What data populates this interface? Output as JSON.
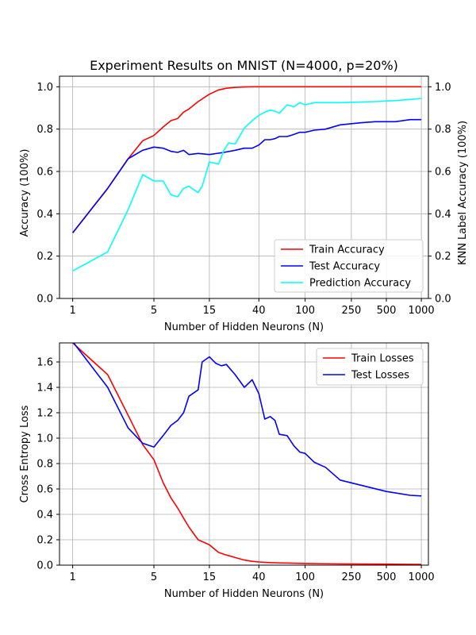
{
  "chart_data": [
    {
      "type": "line",
      "title": "Experiment Results on MNIST (N=4000, p=20%)",
      "xlabel": "Number of Hidden Neurons (N)",
      "ylabel": "Accuracy (100%)",
      "ylabel_right": "KNN Label Accuracy (100%)",
      "x_ticks": [
        1,
        5,
        15,
        40,
        100,
        250,
        500,
        1000
      ],
      "x_tick_labels": [
        "1",
        "5",
        "15",
        "40",
        "100",
        "250",
        "500",
        "1000"
      ],
      "xlim": [
        0.77,
        1150
      ],
      "ylim": [
        0,
        1.05
      ],
      "y_ticks": [
        0.0,
        0.2,
        0.4,
        0.6,
        0.8,
        1.0
      ],
      "y_tick_labels": [
        "0.0",
        "0.2",
        "0.4",
        "0.6",
        "0.8",
        "1.0"
      ],
      "grid": true,
      "legend_position": "lower-right",
      "series": [
        {
          "name": "Train Accuracy",
          "color": "#ff0000",
          "x": [
            1,
            2,
            3,
            4,
            5,
            6,
            7,
            8,
            9,
            10,
            12,
            15,
            18,
            21,
            25,
            30,
            35,
            40,
            50,
            60,
            80,
            100,
            150,
            200,
            300,
            500,
            1000
          ],
          "y": [
            0.31,
            0.52,
            0.66,
            0.745,
            0.77,
            0.81,
            0.84,
            0.85,
            0.88,
            0.895,
            0.93,
            0.965,
            0.985,
            0.993,
            0.997,
            0.999,
            1.0,
            1.0,
            1.0,
            1.0,
            1.0,
            1.0,
            1.0,
            1.0,
            1.0,
            1.0,
            1.0
          ]
        },
        {
          "name": "Test Accuracy",
          "color": "#0000ff",
          "x": [
            1,
            2,
            3,
            4,
            5,
            6,
            7,
            8,
            9,
            10,
            12,
            15,
            20,
            25,
            30,
            35,
            40,
            45,
            50,
            55,
            60,
            70,
            80,
            90,
            100,
            120,
            150,
            200,
            300,
            400,
            600,
            800,
            1000
          ],
          "y": [
            0.31,
            0.52,
            0.66,
            0.7,
            0.715,
            0.71,
            0.695,
            0.69,
            0.7,
            0.68,
            0.685,
            0.68,
            0.69,
            0.7,
            0.71,
            0.71,
            0.725,
            0.75,
            0.75,
            0.755,
            0.765,
            0.765,
            0.775,
            0.785,
            0.785,
            0.795,
            0.8,
            0.82,
            0.83,
            0.835,
            0.835,
            0.845,
            0.845
          ]
        },
        {
          "name": "Prediction Accuracy",
          "color": "#00ffff",
          "x": [
            1,
            2,
            3,
            4,
            5,
            6,
            7,
            8,
            9,
            10,
            12,
            13,
            15,
            18,
            20,
            22,
            25,
            30,
            35,
            40,
            45,
            50,
            55,
            60,
            70,
            80,
            90,
            100,
            120,
            150,
            200,
            300,
            400,
            600,
            800,
            1000
          ],
          "y": [
            0.13,
            0.22,
            0.42,
            0.585,
            0.555,
            0.555,
            0.49,
            0.48,
            0.52,
            0.53,
            0.5,
            0.53,
            0.645,
            0.635,
            0.7,
            0.735,
            0.73,
            0.805,
            0.84,
            0.865,
            0.88,
            0.89,
            0.885,
            0.875,
            0.915,
            0.905,
            0.925,
            0.915,
            0.925,
            0.925,
            0.925,
            0.928,
            0.93,
            0.935,
            0.94,
            0.945
          ]
        }
      ]
    },
    {
      "type": "line",
      "title": "",
      "xlabel": "Number of Hidden Neurons (N)",
      "ylabel": "Cross Entropy Loss",
      "x_ticks": [
        1,
        5,
        15,
        40,
        100,
        250,
        500,
        1000
      ],
      "x_tick_labels": [
        "1",
        "5",
        "15",
        "40",
        "100",
        "250",
        "500",
        "1000"
      ],
      "xlim": [
        0.77,
        1150
      ],
      "ylim": [
        0,
        1.75
      ],
      "y_ticks": [
        0.0,
        0.2,
        0.4,
        0.6,
        0.8,
        1.0,
        1.2,
        1.4,
        1.6
      ],
      "y_tick_labels": [
        "0.0",
        "0.2",
        "0.4",
        "0.6",
        "0.8",
        "1.0",
        "1.2",
        "1.4",
        "1.6"
      ],
      "grid": true,
      "legend_position": "upper-right",
      "series": [
        {
          "name": "Train Losses",
          "color": "#ff0000",
          "x": [
            1,
            2,
            3,
            4,
            5,
            6,
            7,
            8,
            9,
            10,
            12,
            15,
            18,
            21,
            25,
            30,
            35,
            40,
            50,
            60,
            80,
            100,
            150,
            200,
            300,
            500,
            1000
          ],
          "y": [
            1.75,
            1.5,
            1.18,
            0.95,
            0.83,
            0.65,
            0.53,
            0.45,
            0.37,
            0.3,
            0.2,
            0.16,
            0.1,
            0.08,
            0.06,
            0.04,
            0.03,
            0.025,
            0.02,
            0.018,
            0.015,
            0.013,
            0.011,
            0.01,
            0.009,
            0.008,
            0.006
          ]
        },
        {
          "name": "Test Losses",
          "color": "#0000ff",
          "x": [
            1,
            2,
            3,
            4,
            5,
            6,
            7,
            8,
            9,
            10,
            12,
            13,
            15,
            17,
            19,
            21,
            25,
            30,
            35,
            40,
            45,
            50,
            55,
            60,
            70,
            80,
            90,
            100,
            120,
            150,
            200,
            300,
            500,
            800,
            1000
          ],
          "y": [
            1.76,
            1.4,
            1.08,
            0.96,
            0.93,
            1.02,
            1.1,
            1.14,
            1.2,
            1.33,
            1.38,
            1.6,
            1.64,
            1.59,
            1.57,
            1.58,
            1.5,
            1.4,
            1.46,
            1.35,
            1.15,
            1.17,
            1.14,
            1.03,
            1.02,
            0.94,
            0.89,
            0.88,
            0.81,
            0.77,
            0.67,
            0.63,
            0.58,
            0.55,
            0.545
          ]
        }
      ]
    }
  ]
}
